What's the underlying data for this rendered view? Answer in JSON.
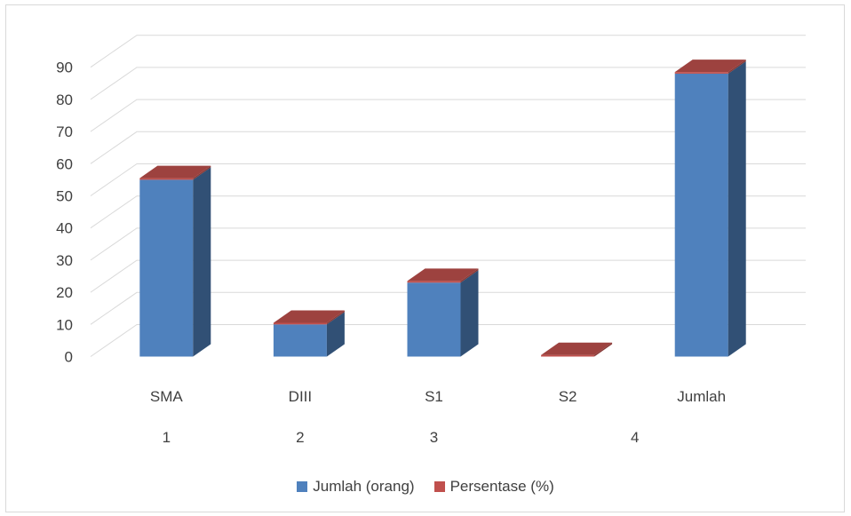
{
  "chart_data": {
    "type": "bar",
    "three_d": true,
    "categories": [
      "SMA",
      "DIII",
      "S1",
      "S2",
      "Jumlah"
    ],
    "group_labels": [
      "1",
      "2",
      "3",
      "",
      "4"
    ],
    "series": [
      {
        "name": "Jumlah (orang)",
        "color": "#4f81bd",
        "values": [
          55,
          10,
          23,
          0,
          88
        ]
      },
      {
        "name": "Persentase (%)",
        "color": "#c0504d",
        "values": [
          1,
          1,
          1,
          1,
          1
        ]
      }
    ],
    "ylim": [
      0,
      90
    ],
    "yticks": [
      0,
      10,
      20,
      30,
      40,
      50,
      60,
      70,
      80,
      90
    ],
    "grid": true,
    "legend_position": "bottom"
  }
}
